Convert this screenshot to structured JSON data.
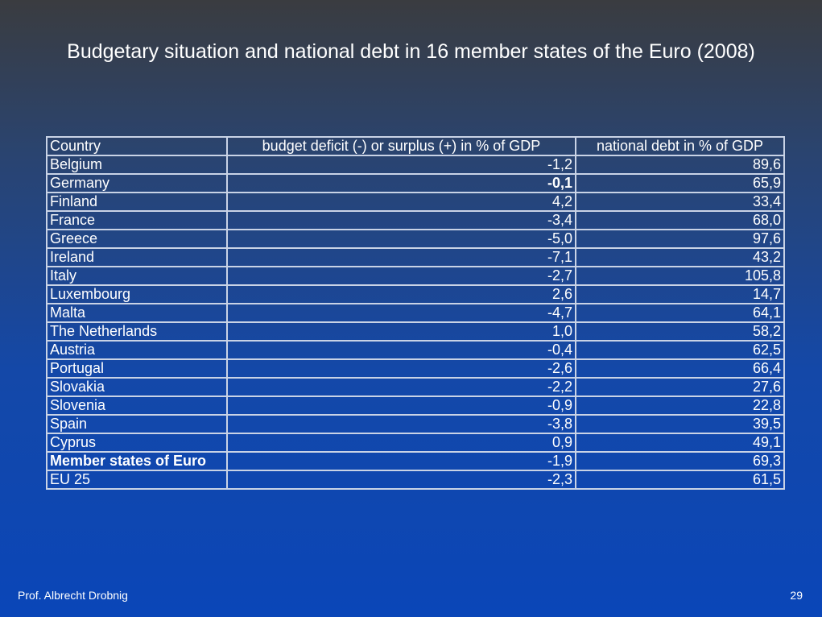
{
  "header": {
    "title": "Budgetary situation and national debt in 16 member states of the Euro (2008)"
  },
  "table": {
    "columns": [
      "Country",
      "budget deficit (-) or surplus (+) in % of GDP",
      "national debt in % of GDP"
    ],
    "rows": [
      [
        "Belgium",
        "-1,2",
        "89,6"
      ],
      [
        "Germany",
        "-0,1",
        "65,9"
      ],
      [
        "Finland",
        "4,2",
        "33,4"
      ],
      [
        "France",
        "-3,4",
        "68,0"
      ],
      [
        "Greece",
        "-5,0",
        "97,6"
      ],
      [
        "Ireland",
        "-7,1",
        "43,2"
      ],
      [
        "Italy",
        "-2,7",
        "105,8"
      ],
      [
        "Luxembourg",
        "2,6",
        "14,7"
      ],
      [
        "Malta",
        "-4,7",
        "64,1"
      ],
      [
        "The Netherlands",
        "1,0",
        "58,2"
      ],
      [
        "Austria",
        "-0,4",
        "62,5"
      ],
      [
        "Portugal",
        "-2,6",
        "66,4"
      ],
      [
        "Slovakia",
        "-2,2",
        "27,6"
      ],
      [
        "Slovenia",
        "-0,9",
        "22,8"
      ],
      [
        "Spain",
        "-3,8",
        "39,5"
      ],
      [
        "Cyprus",
        "0,9",
        "49,1"
      ],
      [
        "Member states of Euro",
        "-1,9",
        "69,3"
      ],
      [
        "EU 25",
        "-2,3",
        "61,5"
      ]
    ]
  },
  "footer": {
    "author": "Prof. Albrecht Drobnig",
    "page": "29"
  }
}
